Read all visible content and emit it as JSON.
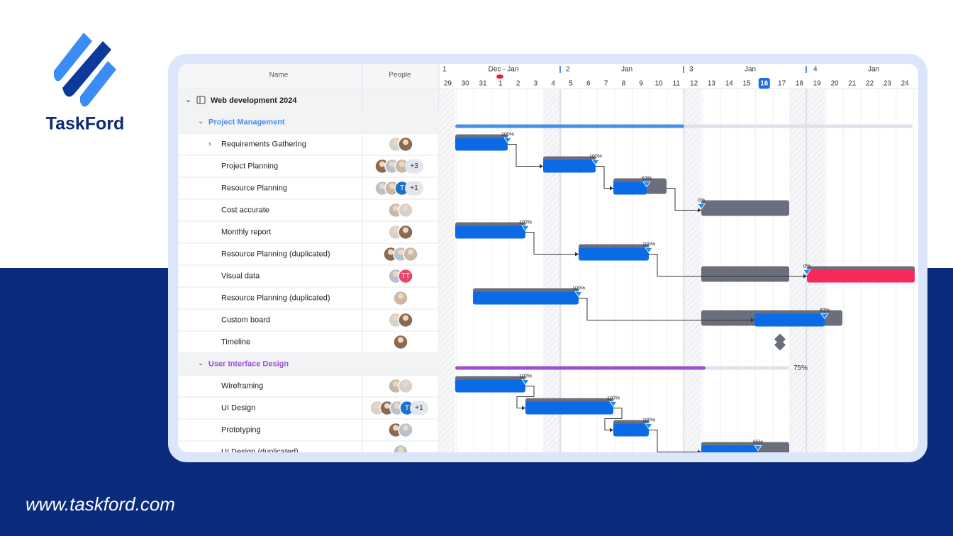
{
  "brand": {
    "name": "TaskFord",
    "url": "www.taskford.com"
  },
  "header": {
    "columns": [
      "Name",
      "People"
    ],
    "weeks": [
      "1",
      "Dec - Jan",
      "2",
      "Jan",
      "3",
      "Jan",
      "4",
      "Jan"
    ],
    "days": [
      "29",
      "30",
      "31",
      "1",
      "2",
      "3",
      "4",
      "5",
      "6",
      "7",
      "8",
      "9",
      "10",
      "11",
      "12",
      "13",
      "14",
      "15",
      "16",
      "17",
      "18",
      "19",
      "20",
      "21",
      "22",
      "23",
      "24"
    ],
    "today": "16"
  },
  "project": {
    "title": "Web development 2024"
  },
  "rows": [
    {
      "name": "Project Management",
      "kind": "group",
      "color": "#4a8ee8"
    },
    {
      "name": "Requirements Gathering",
      "kind": "task",
      "progress": "100%"
    },
    {
      "name": "Project Planning",
      "kind": "task",
      "badges": [
        "+3"
      ],
      "progress": "100%"
    },
    {
      "name": "Resource Planning",
      "kind": "task",
      "badges": [
        "T",
        "+1"
      ],
      "progress": "63%"
    },
    {
      "name": "Cost accurate",
      "kind": "task",
      "progress": "0%"
    },
    {
      "name": "Monthly report",
      "kind": "task",
      "progress": "100%"
    },
    {
      "name": "Resource Planning (duplicated)",
      "kind": "task",
      "progress": "100%"
    },
    {
      "name": "Visual data",
      "kind": "task",
      "badges": [
        "TT"
      ],
      "progress": "0%"
    },
    {
      "name": "Resource Planning (duplicated)",
      "kind": "task",
      "progress": "100%"
    },
    {
      "name": "Custom board",
      "kind": "task",
      "progress": "83%"
    },
    {
      "name": "Timeline",
      "kind": "task"
    },
    {
      "name": "User Interface Design",
      "kind": "group",
      "color": "#9b4fd6",
      "progress": "75%"
    },
    {
      "name": "Wireframing",
      "kind": "task",
      "progress": "100%"
    },
    {
      "name": "UI Design",
      "kind": "task",
      "badges": [
        "T",
        "+1"
      ],
      "progress": "100%"
    },
    {
      "name": "Prototyping",
      "kind": "task",
      "progress": "100%"
    },
    {
      "name": "UI Design (duplicated)",
      "kind": "task",
      "progress": "65%"
    }
  ]
}
